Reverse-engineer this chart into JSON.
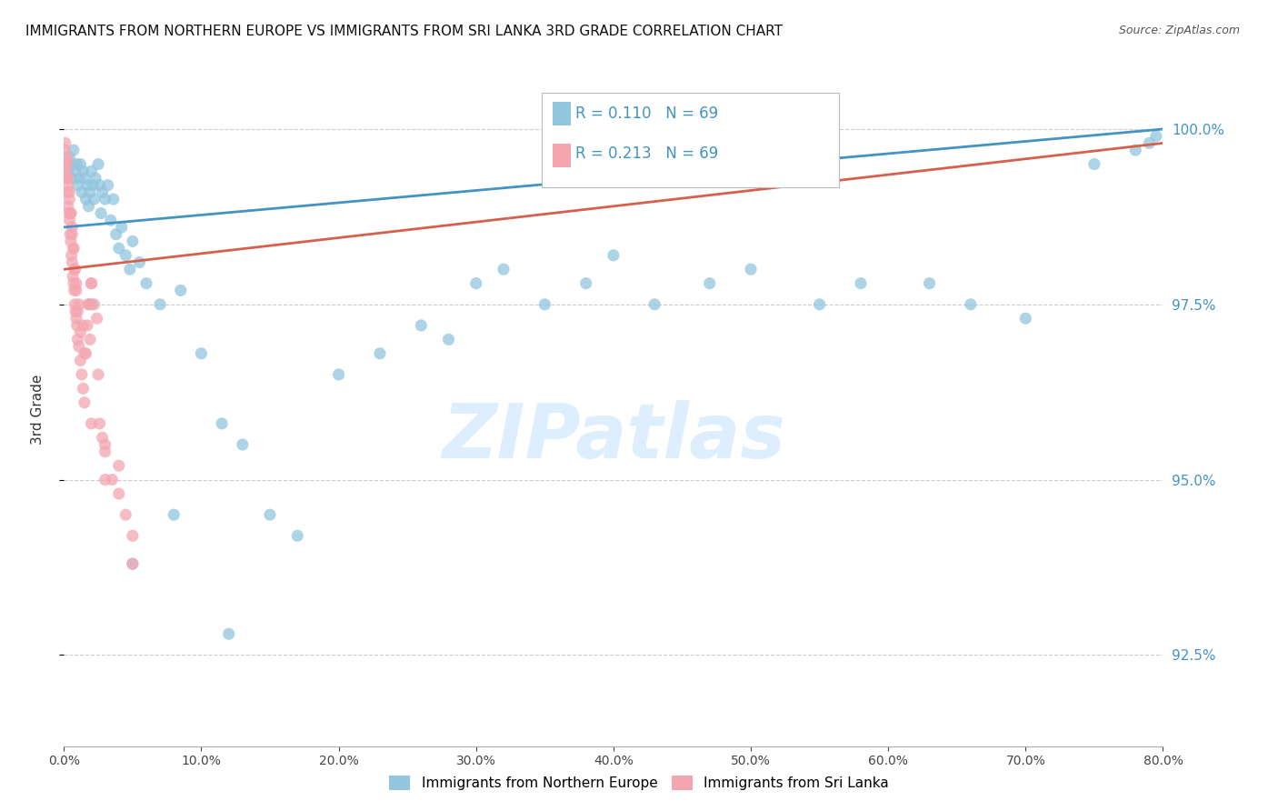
{
  "title": "IMMIGRANTS FROM NORTHERN EUROPE VS IMMIGRANTS FROM SRI LANKA 3RD GRADE CORRELATION CHART",
  "source": "Source: ZipAtlas.com",
  "ylabel": "3rd Grade",
  "xmin": 0.0,
  "xmax": 80.0,
  "ymin": 91.2,
  "ymax": 100.8,
  "yticks": [
    92.5,
    95.0,
    97.5,
    100.0
  ],
  "xticks": [
    0.0,
    10.0,
    20.0,
    30.0,
    40.0,
    50.0,
    60.0,
    70.0,
    80.0
  ],
  "blue_R": 0.11,
  "pink_R": 0.213,
  "N": 69,
  "blue_color": "#92c5de",
  "pink_color": "#f4a6b0",
  "blue_line_color": "#4393c3",
  "pink_line_color": "#d6604d",
  "watermark_color": "#ddeeff",
  "blue_line_y0": 98.6,
  "blue_line_y1": 100.0,
  "pink_line_y0": 98.0,
  "pink_line_y1": 99.8,
  "blue_scatter_x": [
    0.3,
    0.4,
    0.5,
    0.6,
    0.7,
    0.8,
    0.9,
    1.0,
    1.1,
    1.2,
    1.3,
    1.4,
    1.5,
    1.6,
    1.7,
    1.8,
    1.9,
    2.0,
    2.1,
    2.2,
    2.3,
    2.5,
    2.6,
    2.7,
    2.8,
    3.0,
    3.2,
    3.4,
    3.6,
    3.8,
    4.0,
    4.2,
    4.5,
    4.8,
    5.0,
    5.5,
    6.0,
    7.0,
    8.5,
    10.0,
    11.5,
    13.0,
    15.0,
    17.0,
    20.0,
    23.0,
    26.0,
    28.0,
    30.0,
    32.0,
    35.0,
    38.0,
    40.0,
    43.0,
    47.0,
    50.0,
    55.0,
    58.0,
    63.0,
    66.0,
    70.0,
    75.0,
    78.0,
    79.0,
    79.5,
    2.0,
    5.0,
    8.0,
    12.0
  ],
  "blue_scatter_y": [
    99.4,
    99.6,
    99.5,
    99.3,
    99.7,
    99.4,
    99.5,
    99.2,
    99.3,
    99.5,
    99.1,
    99.4,
    99.3,
    99.0,
    99.2,
    98.9,
    99.1,
    99.4,
    99.2,
    99.0,
    99.3,
    99.5,
    99.2,
    98.8,
    99.1,
    99.0,
    99.2,
    98.7,
    99.0,
    98.5,
    98.3,
    98.6,
    98.2,
    98.0,
    98.4,
    98.1,
    97.8,
    97.5,
    97.7,
    96.8,
    95.8,
    95.5,
    94.5,
    94.2,
    96.5,
    96.8,
    97.2,
    97.0,
    97.8,
    98.0,
    97.5,
    97.8,
    98.2,
    97.5,
    97.8,
    98.0,
    97.5,
    97.8,
    97.8,
    97.5,
    97.3,
    99.5,
    99.7,
    99.8,
    99.9,
    97.5,
    93.8,
    94.5,
    92.8
  ],
  "pink_scatter_x": [
    0.05,
    0.1,
    0.15,
    0.2,
    0.25,
    0.3,
    0.35,
    0.4,
    0.45,
    0.5,
    0.55,
    0.6,
    0.65,
    0.7,
    0.75,
    0.8,
    0.85,
    0.9,
    0.95,
    1.0,
    1.1,
    1.2,
    1.3,
    1.4,
    1.5,
    1.6,
    1.7,
    1.8,
    1.9,
    2.0,
    2.2,
    2.4,
    2.6,
    2.8,
    3.0,
    3.5,
    4.0,
    4.5,
    5.0,
    0.2,
    0.3,
    0.4,
    0.5,
    0.6,
    0.7,
    0.8,
    0.9,
    1.0,
    1.2,
    1.5,
    1.8,
    2.0,
    2.5,
    3.0,
    4.0,
    5.0,
    0.1,
    0.2,
    0.3,
    0.4,
    0.5,
    0.6,
    0.7,
    0.8,
    0.9,
    1.1,
    1.4,
    2.0,
    3.0
  ],
  "pink_scatter_y": [
    99.7,
    99.5,
    99.4,
    99.3,
    99.1,
    98.9,
    98.8,
    98.7,
    98.5,
    98.4,
    98.2,
    98.1,
    97.9,
    97.8,
    97.7,
    97.5,
    97.4,
    97.3,
    97.2,
    97.0,
    96.9,
    96.7,
    96.5,
    96.3,
    96.1,
    96.8,
    97.2,
    97.5,
    97.0,
    97.8,
    97.5,
    97.3,
    95.8,
    95.6,
    95.4,
    95.0,
    94.8,
    94.5,
    94.2,
    99.5,
    99.2,
    99.0,
    98.8,
    98.5,
    98.3,
    98.0,
    97.7,
    97.4,
    97.1,
    96.8,
    97.5,
    97.8,
    96.5,
    95.5,
    95.2,
    93.8,
    99.8,
    99.6,
    99.3,
    99.1,
    98.8,
    98.6,
    98.3,
    98.0,
    97.8,
    97.5,
    97.2,
    95.8,
    95.0
  ]
}
